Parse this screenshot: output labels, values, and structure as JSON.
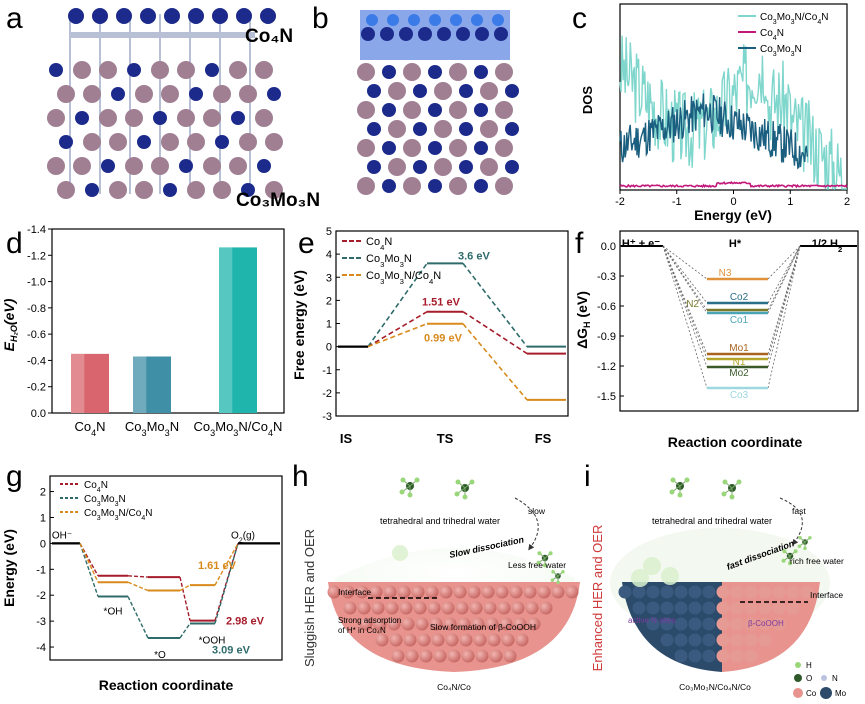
{
  "panel_labels": {
    "a": "a",
    "b": "b",
    "c": "c",
    "d": "d",
    "e": "e",
    "f": "f",
    "g": "g",
    "h": "h",
    "i": "i"
  },
  "panel_a": {
    "label_top": "Co₄N",
    "label_bottom": "Co₃Mo₃N"
  },
  "chart_data": [
    {
      "panel": "c",
      "type": "line",
      "xlabel": "Energy (eV)",
      "ylabel": "DOS",
      "xlim": [
        -2,
        2
      ],
      "xticks": [
        "-2",
        "-1",
        "0",
        "1",
        "2"
      ],
      "legend_position": "top-right",
      "series": [
        {
          "name": "Co₃Mo₃N/Co₄N",
          "color": "#7fd6cc"
        },
        {
          "name": "Co₄N",
          "color": "#c2187a"
        },
        {
          "name": "Co₃Mo₃N",
          "color": "#1a5f80"
        }
      ]
    },
    {
      "panel": "d",
      "type": "bar",
      "ylabel": "E_H2O(eV)",
      "ylim": [
        0,
        -1.4
      ],
      "yticks": [
        "-1.4",
        "-1.2",
        "-1.0",
        "-0.8",
        "-0.6",
        "-0.4",
        "-0.2",
        "0.0"
      ],
      "categories": [
        "Co₄N",
        "Co₃Mo₃N",
        "Co₃Mo₃N/Co₄N"
      ],
      "values": [
        -0.45,
        -0.43,
        -1.26
      ],
      "colors": [
        "#d9666e",
        "#3f8fa6",
        "#1fb5ad"
      ]
    },
    {
      "panel": "e",
      "type": "line",
      "ylabel": "Free energy (eV)",
      "yticks": [
        "-3",
        "-2",
        "-1",
        "0",
        "1",
        "2",
        "3",
        "4",
        "5"
      ],
      "categories": [
        "IS",
        "TS",
        "FS"
      ],
      "series": [
        {
          "name": "Co₄N",
          "color": "#a61c2a",
          "values": [
            0,
            1.51,
            -0.3
          ]
        },
        {
          "name": "Co₃Mo₃N",
          "color": "#2f6b6b",
          "values": [
            0,
            3.6,
            0
          ]
        },
        {
          "name": "Co₃Mo₃N/Co₄N",
          "color": "#d98a1c",
          "values": [
            0,
            0.99,
            -2.3
          ]
        }
      ],
      "annotations": [
        "3.6 eV",
        "1.51 eV",
        "0.99 eV"
      ]
    },
    {
      "panel": "f",
      "type": "line",
      "xlabel": "Reaction coordinate",
      "ylabel": "ΔG_H (eV)",
      "yticks": [
        "0.0",
        "-0.3",
        "-0.6",
        "-0.9",
        "-1.2",
        "-1.5"
      ],
      "states": [
        "H⁺ + e⁻",
        "H*",
        "1/2 H₂"
      ],
      "levels": [
        {
          "name": "N3",
          "value": -0.33,
          "color": "#e0923a"
        },
        {
          "name": "Co2",
          "value": -0.57,
          "color": "#2a6f87"
        },
        {
          "name": "N2",
          "value": -0.64,
          "color": "#7a7a2a"
        },
        {
          "name": "Co1",
          "value": -0.67,
          "color": "#4aa3b7"
        },
        {
          "name": "Mo1",
          "value": -1.08,
          "color": "#a8641e"
        },
        {
          "name": "N1",
          "value": -1.13,
          "color": "#b5a42a"
        },
        {
          "name": "Mo2",
          "value": -1.21,
          "color": "#3a5a2a"
        },
        {
          "name": "Co3",
          "value": -1.42,
          "color": "#9ed7e0"
        }
      ]
    },
    {
      "panel": "g",
      "type": "line",
      "xlabel": "Reaction coordinate",
      "ylabel": "Energy (eV)",
      "yticks": [
        "2",
        "1",
        "0",
        "-1",
        "-2",
        "-3",
        "-4"
      ],
      "states": [
        "OH⁻",
        "*OH",
        "*O",
        "*OOH",
        "O₂(g)"
      ],
      "series": [
        {
          "name": "Co₄N",
          "color": "#a61c2a",
          "values": [
            0,
            -1.25,
            -1.3,
            -2.98,
            0
          ]
        },
        {
          "name": "Co₃Mo₃N",
          "color": "#2f6b6b",
          "values": [
            0,
            -2.05,
            -3.65,
            -3.09,
            0
          ]
        },
        {
          "name": "Co₃Mo₃N/Co₄N",
          "color": "#d98a1c",
          "values": [
            0,
            -1.5,
            -1.82,
            -1.61,
            0
          ]
        }
      ],
      "annotations": [
        "1.61 eV",
        "2.98 eV",
        "3.09 eV"
      ]
    }
  ],
  "panel_h": {
    "side_title": "Sluggish HER and OER",
    "water_label": "tetrahedral and trihedral water",
    "slow": "slow",
    "slow_dissociation": "Slow dissociation",
    "less_free_water": "Less free water",
    "interface": "Interface",
    "strong_adsorption": "Strong adsorption of H* in Co₄N",
    "slow_formation": "Slow formation of β-CoOOH",
    "caption": "Co₄N/Co"
  },
  "panel_i": {
    "side_title": "Enhanced HER and OER",
    "water_label": "tetrahedral and trihedral water",
    "fast": "fast",
    "fast_dissociation": "fast dissociation",
    "rich_free_water": "rich free water",
    "interface": "Interface",
    "active_n_sites": "active N sites",
    "beta_cooooh": "β-CoOOH",
    "caption": "Co₃Mo₃N/Co₄N/Co",
    "legend": {
      "h": "H",
      "o": "O",
      "n": "N",
      "co": "Co",
      "mo": "Mo"
    }
  }
}
